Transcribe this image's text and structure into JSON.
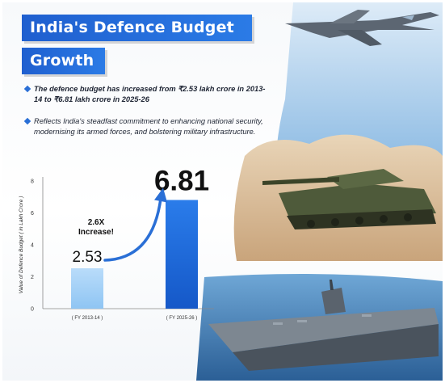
{
  "title": {
    "line1": "India's Defence Budget",
    "line2": "Growth"
  },
  "bullets": [
    "The defence budget has increased from ₹2.53 lakh crore in 2013-14 to ₹6.81 lakh crore in 2025-26",
    "Reflects India's steadfast commitment to enhancing national security, modernising its armed forces, and bolstering military infrastructure."
  ],
  "colors": {
    "banner": "#2b7be6",
    "bar_light": "#a9d4f7",
    "bar_dark": "#1f6fe0",
    "arrow": "#2a6fd6"
  },
  "chart_data": {
    "type": "bar",
    "categories": [
      "( FY 2013-14 )",
      "( FY 2025-26 )"
    ],
    "values": [
      2.53,
      6.81
    ],
    "value_labels": [
      "2.53",
      "6.81"
    ],
    "ylabel": "Value of Defence Budget ( in Lakh Crore )",
    "ylim": [
      0,
      8
    ],
    "yticks": [
      0,
      2,
      4,
      6,
      8
    ],
    "annotation": [
      "2.6X",
      "Increase!"
    ],
    "grid": false
  },
  "icons": [
    "fighter-jet-image",
    "battle-tank-image",
    "aircraft-carrier-image"
  ]
}
